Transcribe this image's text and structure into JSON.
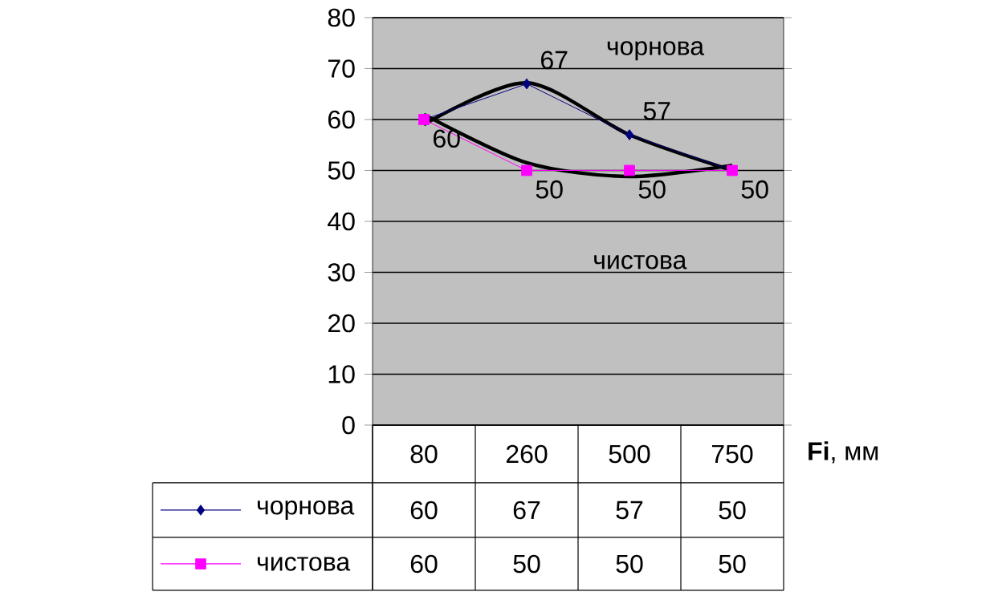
{
  "chart_data": {
    "type": "line",
    "xlabel": "**Fi**, мм",
    "categories": [
      "80",
      "260",
      "500",
      "750"
    ],
    "series": [
      {
        "name": "чорнова",
        "color": "#000080",
        "marker": "diamond",
        "values": [
          60,
          67,
          57,
          50
        ]
      },
      {
        "name": "чистова",
        "color": "#ff00ff",
        "marker": "square",
        "values": [
          60,
          50,
          50,
          50
        ]
      },
      {
        "color": "#000000",
        "marker": "none",
        "values": [
          59,
          67.2,
          57,
          50
        ],
        "data_labels": false
      },
      {
        "color": "#000000",
        "marker": "none",
        "values": [
          61,
          51.5,
          48.8,
          51
        ],
        "data_labels": false
      }
    ],
    "annotations": [
      "чорнова",
      "чистова",
      {
        "text": "60",
        "x": "80",
        "y": 60
      },
      {
        "text": "67",
        "x": "260",
        "y": 67
      },
      {
        "text": "57",
        "x": "500",
        "y": 57
      },
      {
        "text": "50",
        "x": "260",
        "y": 50
      },
      {
        "text": "50",
        "x": "500",
        "y": 50
      },
      {
        "text": "50",
        "x": "750",
        "y": 50
      }
    ],
    "ylim": [
      0,
      80
    ],
    "yticks": [
      0,
      10,
      20,
      30,
      40,
      50,
      60,
      70,
      80
    ],
    "grid": true,
    "legend": "bottom",
    "data_labels": true,
    "line_style": "solid"
  }
}
